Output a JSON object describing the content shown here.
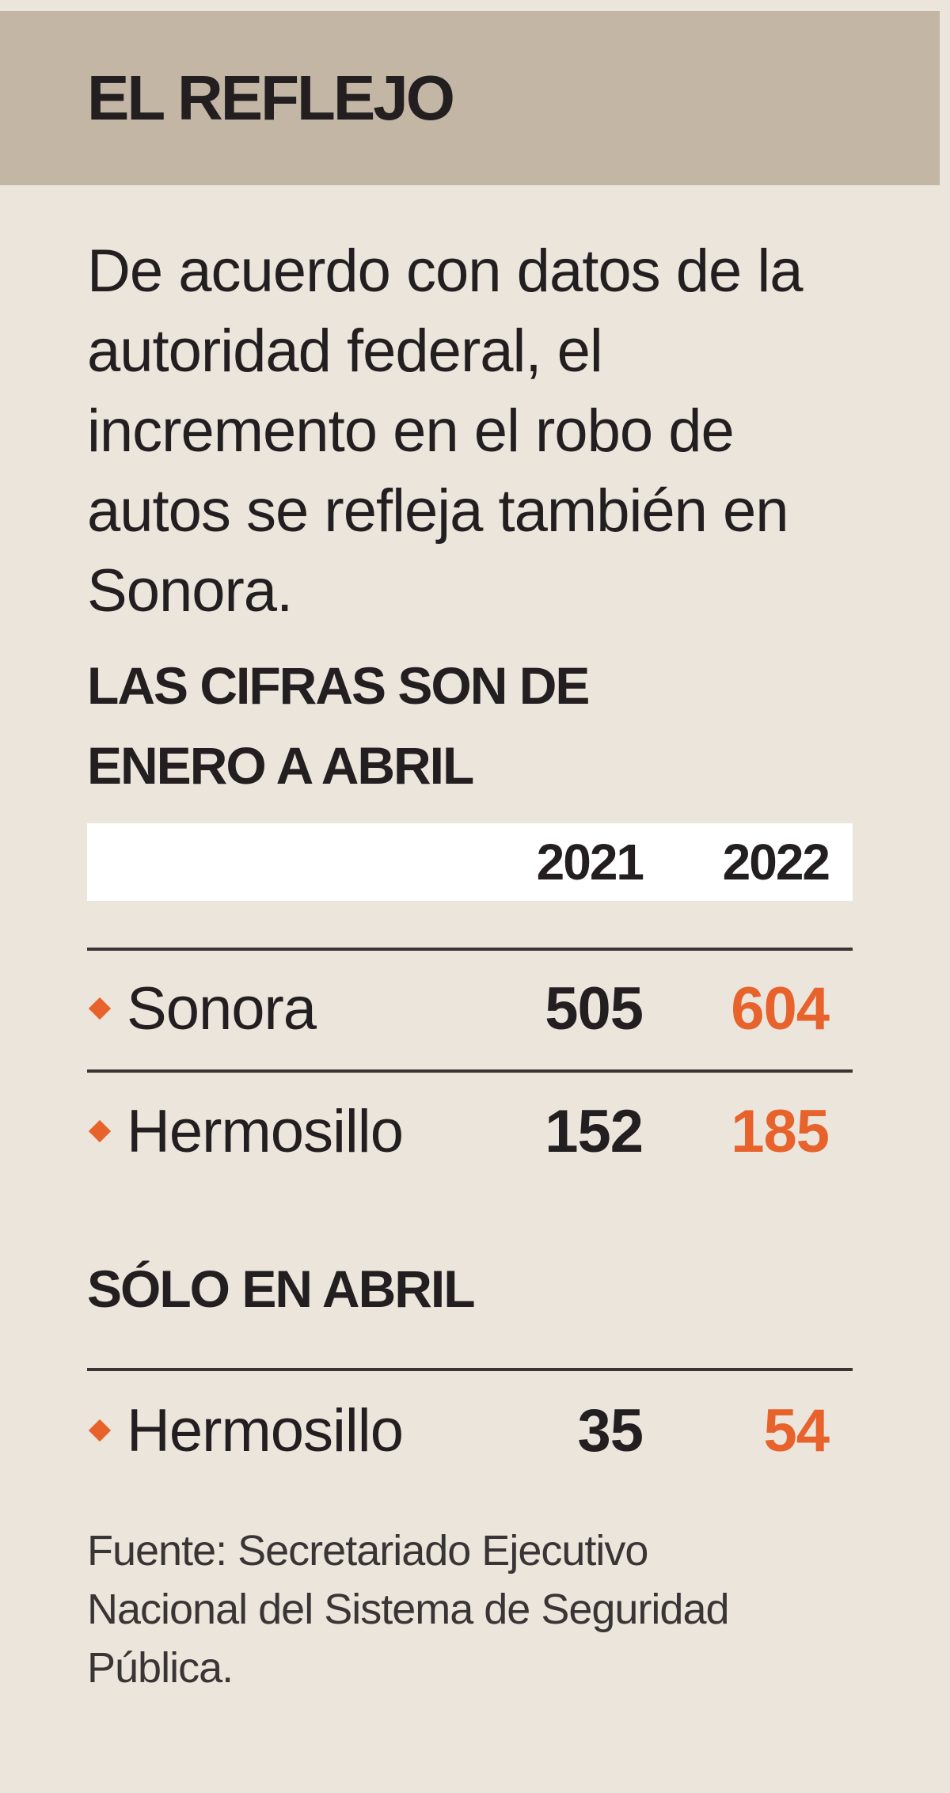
{
  "header": {
    "title": "EL REFLEJO"
  },
  "intro": "De acuerdo con datos de la autoridad federal, el incremento en el robo de autos se refleja también en Sonora.",
  "sections": [
    {
      "title": "LAS CIFRAS SON DE ENERO A ABRIL",
      "columns": [
        "2021",
        "2022"
      ],
      "rows": [
        {
          "label": "Sonora",
          "values": [
            505,
            604
          ]
        },
        {
          "label": "Hermosillo",
          "values": [
            152,
            185
          ]
        }
      ]
    },
    {
      "title": "SÓLO EN ABRIL",
      "rows": [
        {
          "label": "Hermosillo",
          "values": [
            35,
            54
          ]
        }
      ]
    }
  ],
  "source": "Fuente: Secretariado Ejecutivo Nacional del Sistema de Seguridad Pública."
}
